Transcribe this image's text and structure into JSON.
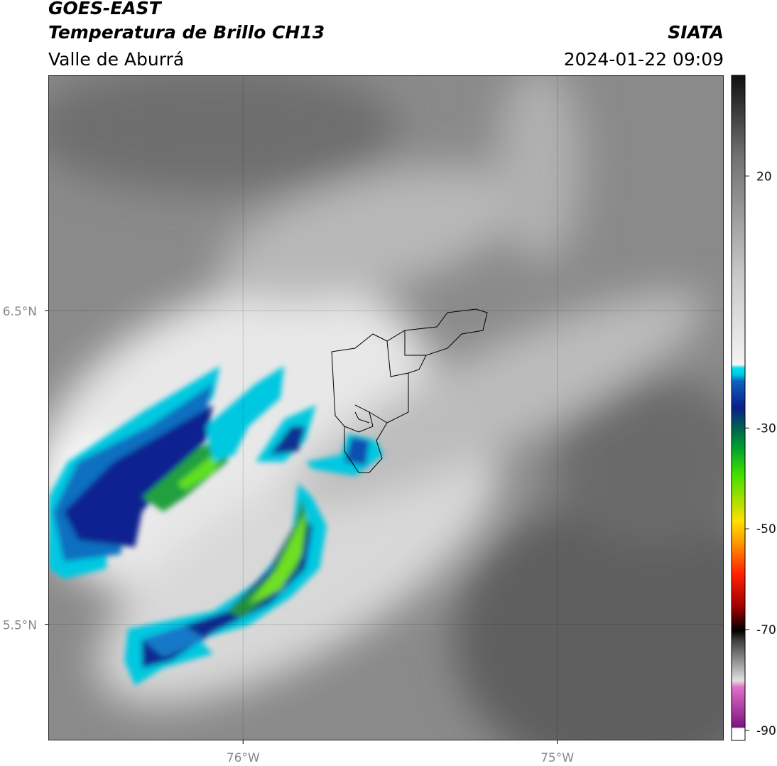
{
  "header": {
    "satellite": "GOES-EAST",
    "product": "Temperatura de Brillo CH13",
    "region": "Valle de Aburrá",
    "agency": "SIATA",
    "datetime": "2024-01-22 09:09"
  },
  "map": {
    "lat_lim": [
      5.13,
      7.25
    ],
    "lon_lim": [
      -76.62,
      -74.47
    ],
    "lat_ticks": [
      {
        "value": 6.5,
        "label": "6.5°N"
      },
      {
        "value": 5.5,
        "label": "5.5°N"
      }
    ],
    "lon_ticks": [
      {
        "value": -76,
        "label": "76°W"
      },
      {
        "value": -75,
        "label": "75°W"
      }
    ]
  },
  "colorbar": {
    "lim": [
      -92,
      40
    ],
    "ticks": [
      20,
      -30,
      -50,
      -70,
      -90
    ]
  }
}
